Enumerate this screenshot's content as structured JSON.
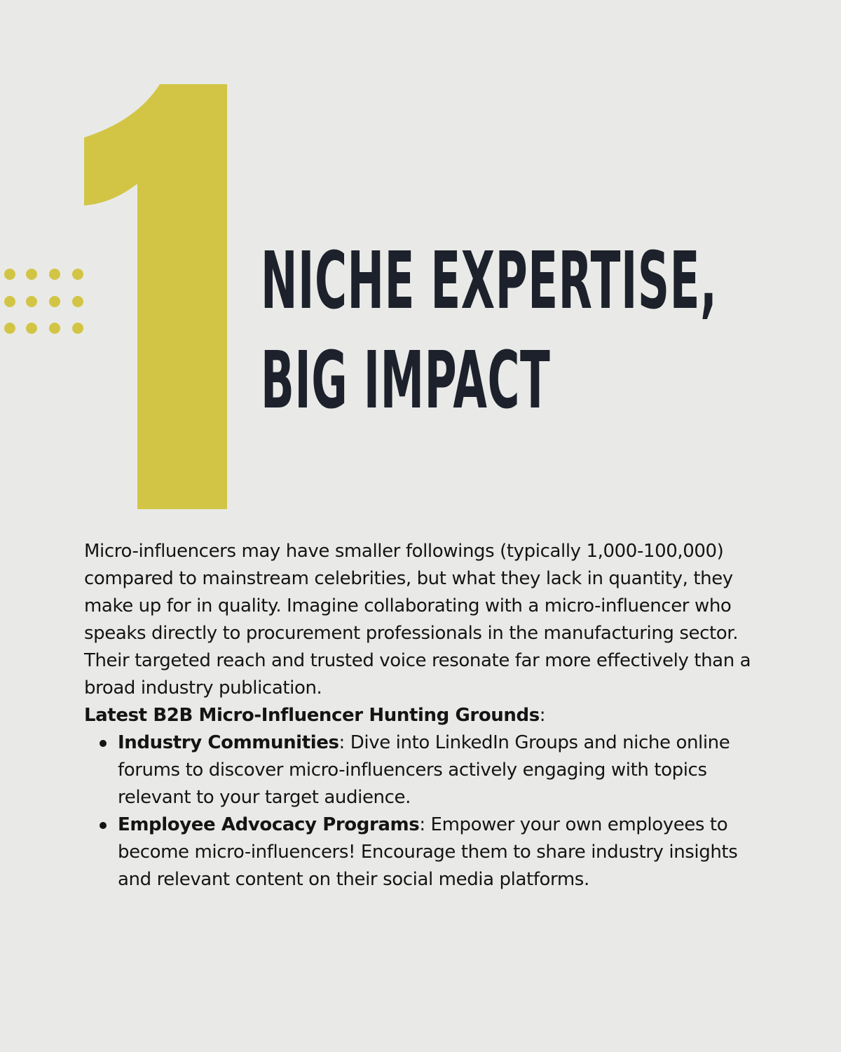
{
  "slide": {
    "number": "1",
    "accent_color": "#d2c545",
    "headline_color": "#1d212b",
    "background_color": "#e9eae7",
    "headline_line1": "NICHE EXPERTISE,",
    "headline_line2": "BIG IMPACT",
    "intro_paragraph": "Micro-influencers may have smaller followings (typically 1,000-100,000) compared to mainstream celebrities, but what they lack in quantity, they make up for in quality. Imagine collaborating with a micro-influencer who speaks directly to procurement professionals in the manufacturing sector. Their targeted reach and trusted voice resonate far more effectively than a broad industry publication.",
    "subhead_bold": "Latest B2B Micro-Influencer Hunting Grounds",
    "subhead_suffix": ":",
    "items": [
      {
        "title": "Industry Communities",
        "text": ": Dive into LinkedIn Groups and niche online forums to discover micro-influencers actively engaging with topics relevant to your target audience."
      },
      {
        "title": "Employee Advocacy Programs",
        "text": ": Empower your own employees to become micro-influencers! Encourage them to share industry insights and relevant content on their social media platforms."
      }
    ]
  }
}
